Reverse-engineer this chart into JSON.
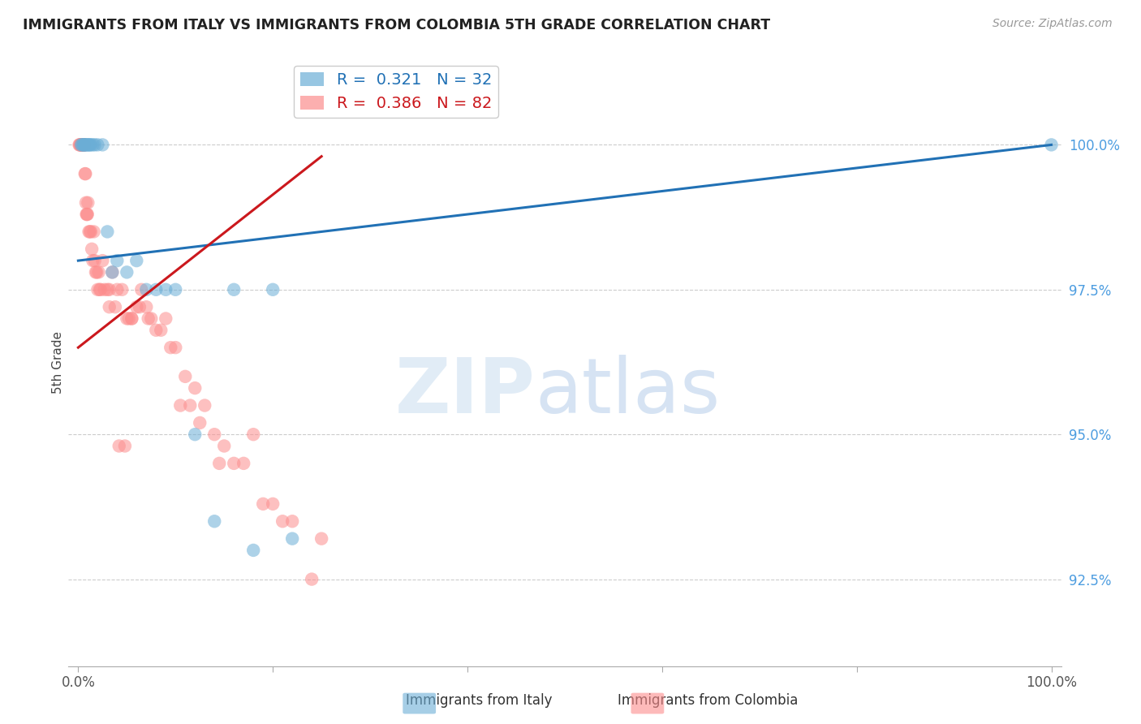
{
  "title": "IMMIGRANTS FROM ITALY VS IMMIGRANTS FROM COLOMBIA 5TH GRADE CORRELATION CHART",
  "source": "Source: ZipAtlas.com",
  "ylabel": "5th Grade",
  "legend_italy_r": "0.321",
  "legend_italy_n": "32",
  "legend_colombia_r": "0.386",
  "legend_colombia_n": "82",
  "italy_color": "#6baed6",
  "colombia_color": "#fc8d8d",
  "italy_line_color": "#2171b5",
  "colombia_line_color": "#cb181d",
  "italy_x": [
    0.3,
    0.5,
    0.6,
    0.7,
    0.8,
    0.9,
    1.0,
    1.1,
    1.2,
    1.3,
    1.5,
    1.7,
    2.0,
    2.5,
    3.0,
    3.5,
    4.0,
    5.0,
    6.0,
    7.0,
    8.0,
    9.0,
    10.0,
    12.0,
    14.0,
    16.0,
    18.0,
    20.0,
    22.0,
    100.0,
    0.4,
    0.6
  ],
  "italy_y": [
    100.0,
    100.0,
    100.0,
    100.0,
    100.0,
    100.0,
    100.0,
    100.0,
    100.0,
    100.0,
    100.0,
    100.0,
    100.0,
    100.0,
    98.5,
    97.8,
    98.0,
    97.8,
    98.0,
    97.5,
    97.5,
    97.5,
    97.5,
    95.0,
    93.5,
    97.5,
    93.0,
    97.5,
    93.2,
    100.0,
    100.0,
    100.0
  ],
  "colombia_x": [
    0.1,
    0.15,
    0.2,
    0.25,
    0.3,
    0.32,
    0.35,
    0.37,
    0.4,
    0.42,
    0.45,
    0.47,
    0.5,
    0.52,
    0.55,
    0.57,
    0.6,
    0.65,
    0.7,
    0.75,
    0.8,
    0.85,
    0.9,
    0.95,
    1.0,
    1.1,
    1.2,
    1.3,
    1.4,
    1.5,
    1.6,
    1.7,
    1.8,
    1.9,
    2.0,
    2.1,
    2.2,
    2.5,
    2.7,
    3.0,
    3.2,
    3.5,
    4.0,
    4.5,
    5.0,
    5.5,
    6.0,
    6.5,
    7.0,
    7.5,
    8.0,
    9.0,
    10.0,
    11.0,
    12.0,
    13.0,
    14.0,
    15.0,
    16.0,
    18.0,
    20.0,
    22.0,
    25.0,
    5.5,
    8.5,
    3.2,
    2.3,
    10.5,
    4.2,
    3.8,
    7.2,
    6.3,
    5.2,
    12.5,
    11.5,
    9.5,
    4.8,
    14.5,
    17.0,
    19.0,
    21.0,
    24.0
  ],
  "colombia_y": [
    100.0,
    100.0,
    100.0,
    100.0,
    100.0,
    100.0,
    100.0,
    100.0,
    100.0,
    100.0,
    100.0,
    100.0,
    100.0,
    100.0,
    100.0,
    100.0,
    100.0,
    100.0,
    99.5,
    99.5,
    99.0,
    98.8,
    98.8,
    98.8,
    99.0,
    98.5,
    98.5,
    98.5,
    98.2,
    98.0,
    98.5,
    98.0,
    97.8,
    97.8,
    97.5,
    97.8,
    97.5,
    98.0,
    97.5,
    97.5,
    97.5,
    97.8,
    97.5,
    97.5,
    97.0,
    97.0,
    97.2,
    97.5,
    97.2,
    97.0,
    96.8,
    97.0,
    96.5,
    96.0,
    95.8,
    95.5,
    95.0,
    94.8,
    94.5,
    95.0,
    93.8,
    93.5,
    93.2,
    97.0,
    96.8,
    97.2,
    97.5,
    95.5,
    94.8,
    97.2,
    97.0,
    97.2,
    97.0,
    95.2,
    95.5,
    96.5,
    94.8,
    94.5,
    94.5,
    93.8,
    93.5,
    92.5
  ],
  "italy_trendline_x": [
    0.0,
    100.0
  ],
  "italy_trendline_y": [
    98.2,
    100.0
  ],
  "colombia_trendline_x": [
    0.0,
    25.0
  ],
  "colombia_trendline_y": [
    96.8,
    99.5
  ],
  "xlim": [
    -1,
    101
  ],
  "ylim": [
    91.0,
    101.5
  ],
  "yticks": [
    92.5,
    95.0,
    97.5,
    100.0
  ],
  "xticks": [
    0,
    20,
    40,
    60,
    80,
    100
  ],
  "grid_color": "#cccccc",
  "background_color": "#ffffff"
}
